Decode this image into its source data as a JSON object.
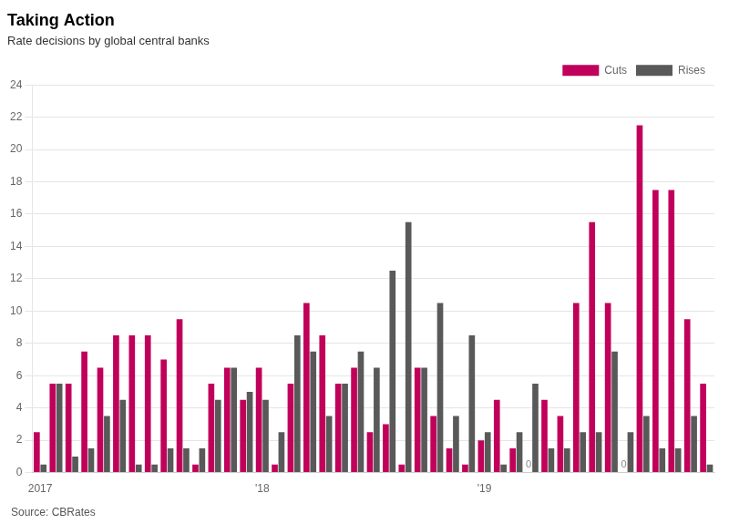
{
  "chart_data": {
    "type": "bar",
    "title": "Taking Action",
    "subtitle": "Rate decisions by global central banks",
    "source": "Source: CBRates",
    "categories": [
      "2017",
      null,
      null,
      null,
      null,
      null,
      null,
      null,
      null,
      null,
      null,
      null,
      null,
      null,
      "'18",
      null,
      null,
      null,
      null,
      null,
      null,
      null,
      null,
      null,
      null,
      null,
      null,
      null,
      "'19",
      null,
      null,
      null,
      null,
      null,
      null,
      null,
      null,
      null,
      null,
      null,
      null,
      null,
      null
    ],
    "series": [
      {
        "name": "Cuts",
        "color": "#C0005A",
        "values": [
          2.5,
          5.5,
          5.5,
          7.5,
          6.5,
          8.5,
          8.5,
          8.5,
          7.0,
          9.5,
          0.5,
          5.5,
          6.5,
          4.5,
          6.5,
          0.5,
          5.5,
          10.5,
          8.5,
          5.5,
          6.5,
          2.5,
          3.0,
          0.5,
          6.5,
          3.5,
          1.5,
          0.5,
          2.0,
          4.5,
          1.5,
          0.0,
          4.5,
          3.5,
          10.5,
          15.5,
          10.5,
          0.0,
          21.5,
          17.5,
          17.5,
          9.5,
          5.5
        ]
      },
      {
        "name": "Rises",
        "color": "#595959",
        "values": [
          0.5,
          5.5,
          1.0,
          1.5,
          3.5,
          4.5,
          0.5,
          0.5,
          1.5,
          1.5,
          1.5,
          4.5,
          6.5,
          5.0,
          4.5,
          2.5,
          8.5,
          7.5,
          3.5,
          5.5,
          7.5,
          6.5,
          12.5,
          15.5,
          6.5,
          10.5,
          3.5,
          8.5,
          2.5,
          0.5,
          2.5,
          5.5,
          1.5,
          1.5,
          2.5,
          2.5,
          7.5,
          2.5,
          3.5,
          1.5,
          1.5,
          3.5,
          0.5
        ]
      }
    ],
    "ylim": [
      0,
      24
    ],
    "yticks": [
      0,
      2,
      4,
      6,
      8,
      10,
      12,
      14,
      16,
      18,
      20,
      22,
      24
    ],
    "grid": true,
    "legend": "upper right",
    "annotations": [
      {
        "text": "0",
        "category_index": 31,
        "series": "Cuts",
        "value": 0
      },
      {
        "text": "0",
        "category_index": 37,
        "series": "Cuts",
        "value": 0
      }
    ]
  }
}
